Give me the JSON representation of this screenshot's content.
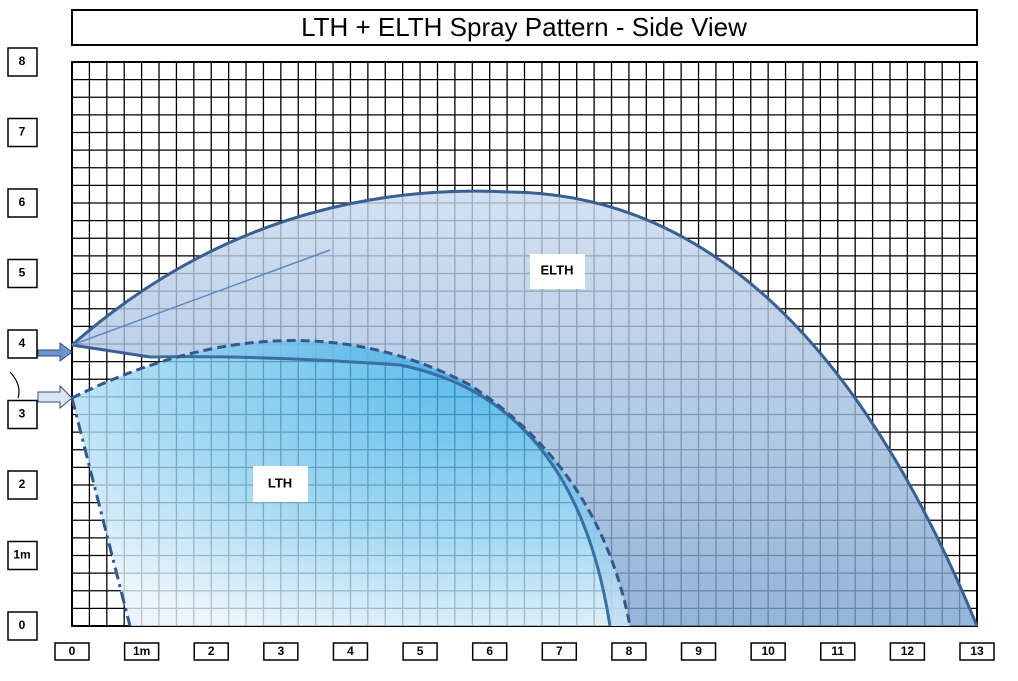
{
  "title": "LTH + ELTH  Spray Pattern - Side View",
  "x_axis": {
    "labels": [
      "0",
      "1m",
      "2",
      "3",
      "4",
      "5",
      "6",
      "7",
      "8",
      "9",
      "10",
      "11",
      "12",
      "13"
    ]
  },
  "y_axis": {
    "labels": [
      "0",
      "1m",
      "2",
      "3",
      "4",
      "5",
      "6",
      "7",
      "8"
    ]
  },
  "regions": [
    {
      "label": "ELTH"
    },
    {
      "label": "LTH"
    }
  ]
}
